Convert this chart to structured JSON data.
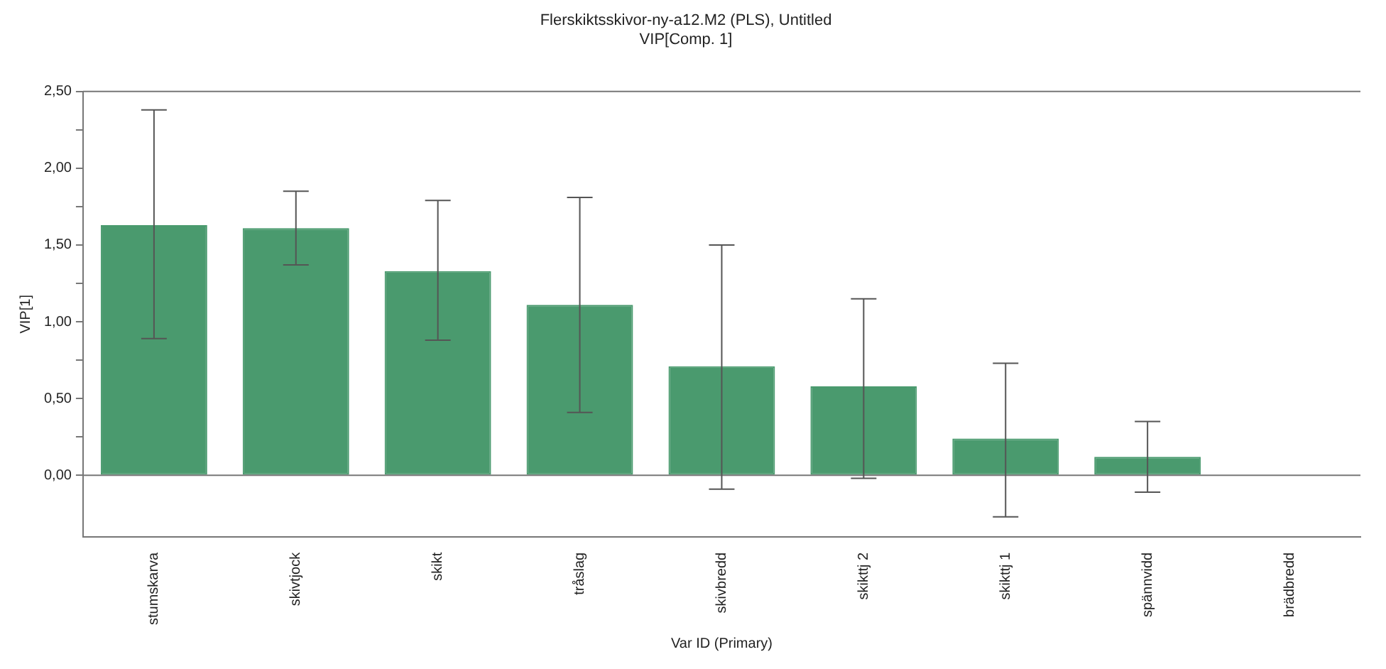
{
  "chart_data": {
    "type": "bar",
    "title": "Flerskiktsskivor-ny-a12.M2 (PLS), Untitled",
    "subtitle": "VIP[Comp. 1]",
    "xlabel": "Var ID (Primary)",
    "ylabel": "VIP[1]",
    "categories": [
      "stumskarva",
      "skivtjock",
      "skikt",
      "tråslag",
      "skivbredd",
      "skikttj 2",
      "skikttj 1",
      "spännvidd",
      "brädbredd"
    ],
    "values": [
      1.63,
      1.61,
      1.33,
      1.11,
      0.71,
      0.58,
      0.24,
      0.12,
      0
    ],
    "errors": [
      [
        0.89,
        2.38
      ],
      [
        1.37,
        1.85
      ],
      [
        0.88,
        1.79
      ],
      [
        0.41,
        1.81
      ],
      [
        -0.09,
        1.5
      ],
      [
        -0.02,
        1.15
      ],
      [
        -0.27,
        0.73
      ],
      [
        -0.11,
        0.35
      ],
      null
    ],
    "color": "#4a9a6e",
    "ylim": [
      -0.4,
      2.5
    ],
    "yticks": [
      {
        "value": 0,
        "label": "0,00"
      },
      {
        "value": 0.25,
        "label": null
      },
      {
        "value": 0.5,
        "label": "0,50"
      },
      {
        "value": 0.75,
        "label": null
      },
      {
        "value": 1,
        "label": "1,00"
      },
      {
        "value": 1.25,
        "label": null
      },
      {
        "value": 1.5,
        "label": "1,50"
      },
      {
        "value": 1.75,
        "label": null
      },
      {
        "value": 2,
        "label": "2,00"
      },
      {
        "value": 2.25,
        "label": null
      },
      {
        "value": 2.5,
        "label": "2,50"
      }
    ],
    "ref_lines": [
      {
        "axis": "y",
        "value": 0
      }
    ],
    "grid": false,
    "legend": false
  }
}
